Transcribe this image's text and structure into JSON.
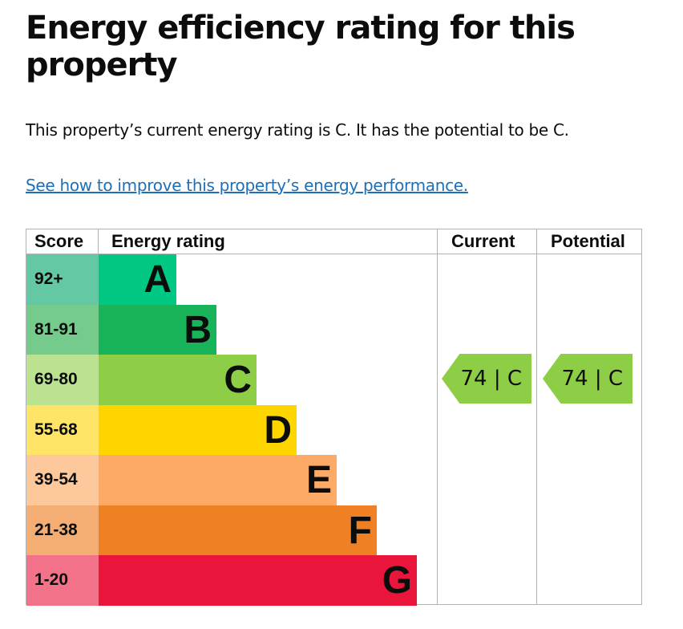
{
  "title": "Energy efficiency rating for this property",
  "summary": "This property’s current energy rating is C. It has the potential to be C.",
  "link": "See how to improve this property’s energy performance.",
  "headers": {
    "score": "Score",
    "rating": "Energy rating",
    "current": "Current",
    "potential": "Potential"
  },
  "bands": [
    {
      "score": "92+",
      "letter": "A",
      "color": "#00c781",
      "score_color": "#64c8a3"
    },
    {
      "score": "81-91",
      "letter": "B",
      "color": "#19b459",
      "score_color": "#75cb8b"
    },
    {
      "score": "69-80",
      "letter": "C",
      "color": "#8dce46",
      "score_color": "#bbe28f"
    },
    {
      "score": "55-68",
      "letter": "D",
      "color": "#ffd500",
      "score_color": "#ffe467"
    },
    {
      "score": "39-54",
      "letter": "E",
      "color": "#fcaa65",
      "score_color": "#fdc89c"
    },
    {
      "score": "21-38",
      "letter": "F",
      "color": "#ef8023",
      "score_color": "#f4ae73"
    },
    {
      "score": "1-20",
      "letter": "G",
      "color": "#e9153b",
      "score_color": "#f27389"
    }
  ],
  "current": {
    "label": "74 |  C",
    "color": "#8dce46"
  },
  "potential": {
    "label": "74 |  C",
    "color": "#8dce46"
  }
}
